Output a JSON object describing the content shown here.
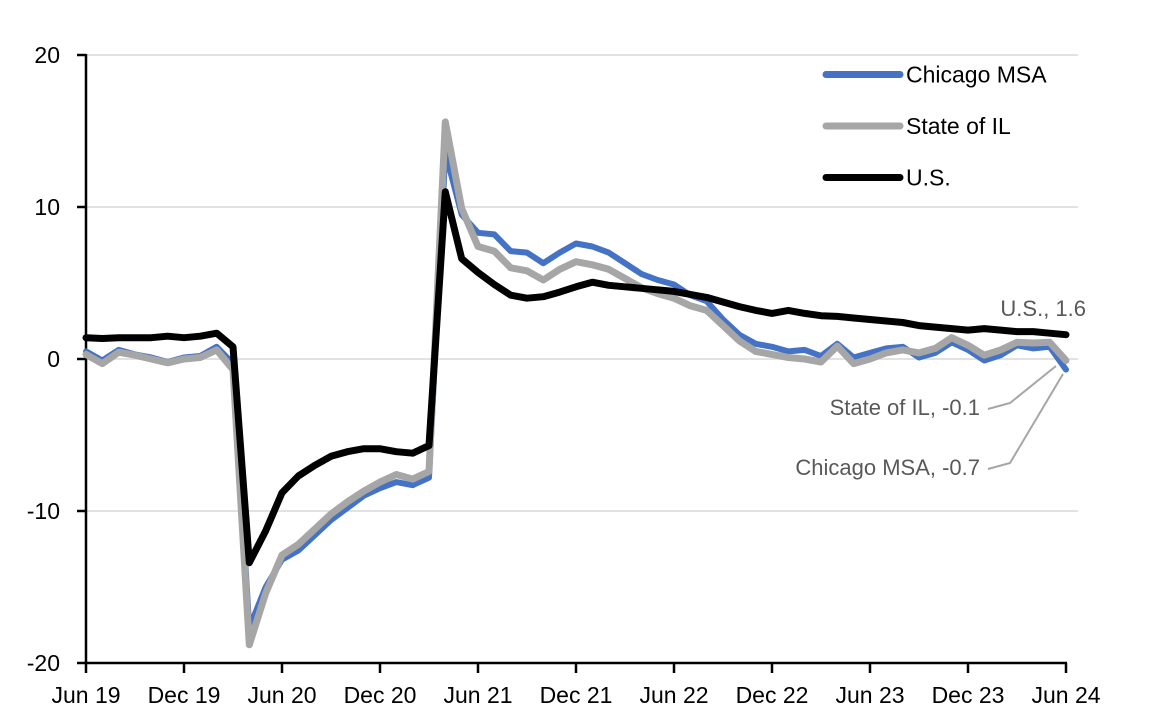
{
  "chart_data": {
    "type": "line",
    "title": "",
    "frequency": "monthly",
    "x_start": "Jun 2019",
    "x_end": "Jun 2024",
    "x_tick_labels": [
      "Jun 19",
      "Dec 19",
      "Jun 20",
      "Dec 20",
      "Jun 21",
      "Dec 21",
      "Jun 22",
      "Dec 22",
      "Jun 23",
      "Dec 23",
      "Jun 24"
    ],
    "x_tick_indices": [
      0,
      6,
      12,
      18,
      24,
      30,
      36,
      42,
      48,
      54,
      60
    ],
    "y_ticks": [
      20,
      10,
      0,
      -10,
      -20
    ],
    "ylim": [
      -20,
      20
    ],
    "grid": "horizontal",
    "legend_position": "top-right",
    "series": [
      {
        "name": "Chicago MSA",
        "color": "#4472C4",
        "values": [
          0.5,
          -0.1,
          0.6,
          0.3,
          0.1,
          -0.2,
          0.1,
          0.2,
          0.8,
          -0.3,
          -17.7,
          -15.0,
          -13.2,
          -12.6,
          -11.6,
          -10.6,
          -9.8,
          -9.0,
          -8.5,
          -8.1,
          -8.3,
          -7.8,
          13.6,
          9.5,
          8.3,
          8.2,
          7.1,
          7.0,
          6.3,
          7.0,
          7.6,
          7.4,
          7.0,
          6.3,
          5.6,
          5.2,
          4.9,
          4.2,
          3.8,
          2.6,
          1.6,
          1.0,
          0.8,
          0.5,
          0.6,
          0.2,
          1.0,
          0.1,
          0.4,
          0.7,
          0.8,
          0.1,
          0.4,
          1.1,
          0.6,
          -0.1,
          0.25,
          0.9,
          0.7,
          0.8,
          -0.7
        ]
      },
      {
        "name": "State of IL",
        "color": "#A6A6A6",
        "values": [
          0.3,
          -0.3,
          0.45,
          0.25,
          0.0,
          -0.25,
          0.0,
          0.1,
          0.6,
          -0.7,
          -18.8,
          -15.4,
          -12.9,
          -12.2,
          -11.2,
          -10.2,
          -9.4,
          -8.7,
          -8.1,
          -7.6,
          -7.9,
          -7.4,
          15.6,
          9.9,
          7.4,
          7.1,
          6.0,
          5.8,
          5.2,
          5.9,
          6.4,
          6.2,
          5.9,
          5.3,
          4.7,
          4.3,
          4.0,
          3.5,
          3.2,
          2.2,
          1.2,
          0.5,
          0.3,
          0.1,
          0.0,
          -0.2,
          0.85,
          -0.3,
          0.0,
          0.4,
          0.6,
          0.4,
          0.7,
          1.4,
          0.9,
          0.25,
          0.6,
          1.1,
          1.05,
          1.1,
          -0.1
        ]
      },
      {
        "name": "U.S.",
        "color": "#000000",
        "values": [
          1.4,
          1.35,
          1.4,
          1.4,
          1.4,
          1.5,
          1.4,
          1.5,
          1.7,
          0.8,
          -13.4,
          -11.3,
          -8.8,
          -7.7,
          -7.0,
          -6.4,
          -6.1,
          -5.9,
          -5.9,
          -6.1,
          -6.2,
          -5.7,
          11.0,
          6.6,
          5.7,
          4.9,
          4.2,
          4.0,
          4.1,
          4.4,
          4.75,
          5.05,
          4.85,
          4.75,
          4.65,
          4.55,
          4.45,
          4.25,
          4.05,
          3.75,
          3.45,
          3.2,
          3.0,
          3.2,
          3.0,
          2.85,
          2.8,
          2.7,
          2.6,
          2.5,
          2.4,
          2.2,
          2.1,
          2.0,
          1.9,
          2.0,
          1.9,
          1.8,
          1.8,
          1.7,
          1.6
        ]
      }
    ],
    "end_labels": [
      {
        "text": "U.S., 1.6",
        "series": "U.S.",
        "value": 1.6
      },
      {
        "text": "State of IL, -0.1",
        "series": "State of IL",
        "value": -0.1
      },
      {
        "text": "Chicago MSA, -0.7",
        "series": "Chicago MSA",
        "value": -0.7
      }
    ]
  },
  "legend": {
    "items": [
      {
        "label": "Chicago MSA",
        "color": "#4472C4"
      },
      {
        "label": "State of IL",
        "color": "#A6A6A6"
      },
      {
        "label": "U.S.",
        "color": "#000000"
      }
    ]
  },
  "colors": {
    "chicago_msa": "#4472C4",
    "state_of_il": "#A6A6A6",
    "us": "#000000",
    "gridline": "#D9D9D9",
    "axis": "#000000",
    "annotation_text": "#595959",
    "leader_line": "#A6A6A6",
    "background": "#FFFFFF"
  }
}
